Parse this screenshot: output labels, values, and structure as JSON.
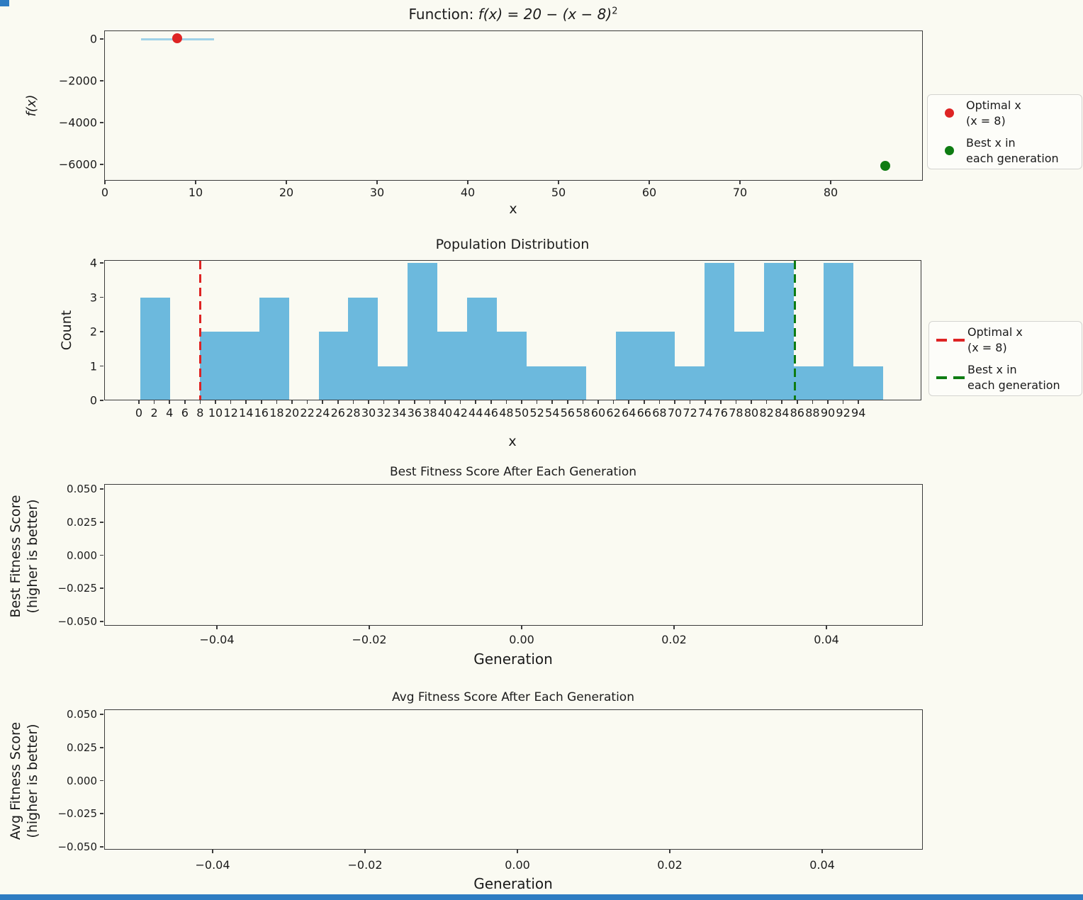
{
  "colors": {
    "red": "#de2424",
    "green": "#0e7c12",
    "hist_bar": "#6cb9dd",
    "function_line": "#9fd2e8",
    "axis": "#3b3b3b",
    "edge_artifact": "#2e7cc2"
  },
  "plot1": {
    "title_prefix": "Function: ",
    "title_math": "f(x) = 20 − (x − 8)",
    "title_sup": "2",
    "xlabel": "x",
    "ylabel": "f(x)"
  },
  "plot2": {
    "title": "Population Distribution",
    "xlabel": "x",
    "ylabel": "Count"
  },
  "plot3": {
    "title": "Best Fitness Score After Each Generation",
    "xlabel": "Generation",
    "ylabel_line1": "Best Fitness Score",
    "ylabel_line2": "(higher is better)"
  },
  "plot4": {
    "title": "Avg Fitness Score After Each Generation",
    "xlabel": "Generation",
    "ylabel_line1": "Avg Fitness Score",
    "ylabel_line2": "(higher is better)"
  },
  "legend1": {
    "item1_line1": "Optimal x",
    "item1_line2": "(x = 8)",
    "item2_line1": "Best x in",
    "item2_line2": "each generation"
  },
  "legend2": {
    "item1_line1": "Optimal x",
    "item1_line2": "(x = 8)",
    "item2_line1": "Best x in",
    "item2_line2": "each generation"
  },
  "chart_data": [
    {
      "type": "line",
      "title": "Function: f(x) = 20 − (x − 8)²",
      "xlabel": "x",
      "ylabel": "f(x)",
      "xlim": [
        -4.5,
        90
      ],
      "ylim": [
        -6740,
        400
      ],
      "grid": false,
      "legend_position": "outside-right",
      "xticks": {
        "values": [
          0,
          10,
          20,
          30,
          40,
          50,
          60,
          70,
          80
        ],
        "labels": [
          "0",
          "10",
          "20",
          "30",
          "40",
          "50",
          "60",
          "70",
          "80"
        ]
      },
      "yticks": {
        "values": [
          0,
          -2000,
          -4000,
          -6000
        ],
        "labels": [
          "0",
          "−2000",
          "−4000",
          "−6000"
        ]
      },
      "series": [
        {
          "name": "function curve over population range",
          "type": "line",
          "color": "#9fd2e8",
          "x": [
            4,
            8,
            12
          ],
          "y": [
            4,
            20,
            4
          ]
        },
        {
          "name": "Optimal x (x = 8)",
          "type": "scatter",
          "color": "#de2424",
          "points": [
            [
              8,
              20
            ]
          ]
        },
        {
          "name": "Best x in each generation",
          "type": "scatter",
          "color": "#0e7c12",
          "points": [
            [
              86,
              -6064
            ]
          ]
        }
      ]
    },
    {
      "type": "bar",
      "subtype": "histogram",
      "title": "Population Distribution",
      "xlabel": "x",
      "ylabel": "Count",
      "ylim": [
        0,
        4.2
      ],
      "grid": false,
      "legend_position": "outside-right",
      "bar_color": "#6cb9dd",
      "bin_edges": [
        0.2,
        4.08,
        7.96,
        11.84,
        15.72,
        19.6,
        23.48,
        27.36,
        31.24,
        35.12,
        39.0,
        42.88,
        46.76,
        50.64,
        54.52,
        58.4,
        62.28,
        66.16,
        70.04,
        73.92,
        77.8,
        81.68,
        85.56,
        89.44,
        93.32,
        97.2
      ],
      "counts": [
        3,
        0,
        2,
        2,
        3,
        0,
        2,
        3,
        1,
        4,
        2,
        3,
        2,
        1,
        1,
        0,
        2,
        2,
        1,
        4,
        2,
        4,
        1,
        4,
        1
      ],
      "vlines": [
        {
          "x": 8,
          "color": "#de2424",
          "style": "dashed",
          "label": "Optimal x (x = 8)"
        },
        {
          "x": 85.7,
          "color": "#0e7c12",
          "style": "dashed",
          "label": "Best x in each generation"
        }
      ],
      "xticks": {
        "values": [
          0,
          2,
          4,
          6,
          8,
          10,
          12,
          14,
          16,
          18,
          20,
          22,
          24,
          26,
          28,
          30,
          32,
          34,
          36,
          38,
          40,
          42,
          44,
          46,
          48,
          50,
          52,
          54,
          56,
          58,
          60,
          62,
          64,
          66,
          68,
          70,
          72,
          74,
          76,
          78,
          80,
          82,
          84,
          86,
          88,
          90,
          92,
          94
        ],
        "labels": [
          "0",
          "2",
          "4",
          "6",
          "8",
          "10",
          "12",
          "14",
          "16",
          "18",
          "20",
          "22",
          "24",
          "26",
          "28",
          "30",
          "32",
          "34",
          "36",
          "38",
          "40",
          "42",
          "44",
          "46",
          "48",
          "50",
          "52",
          "54",
          "56",
          "58",
          "60",
          "62",
          "64",
          "66",
          "68",
          "70",
          "72",
          "74",
          "76",
          "78",
          "80",
          "82",
          "84",
          "86",
          "88",
          "90",
          "92",
          "94"
        ]
      },
      "yticks": {
        "values": [
          0,
          1,
          2,
          3,
          4
        ],
        "labels": [
          "0",
          "1",
          "2",
          "3",
          "4"
        ]
      }
    },
    {
      "type": "line",
      "title": "Best Fitness Score After Each Generation",
      "xlabel": "Generation",
      "ylabel": "Best Fitness Score (higher is better)",
      "xlim": [
        -0.055,
        0.0527
      ],
      "ylim": [
        -0.0554,
        0.0536
      ],
      "grid": false,
      "series": [],
      "xticks": {
        "values": [
          -0.04,
          -0.02,
          0,
          0.02,
          0.04
        ],
        "labels": [
          "−0.04",
          "−0.02",
          "0.00",
          "0.02",
          "0.04"
        ]
      },
      "yticks": {
        "values": [
          0.05,
          0.025,
          0,
          -0.025,
          -0.05
        ],
        "labels": [
          "0.050",
          "0.025",
          "0.000",
          "−0.025",
          "−0.050"
        ]
      }
    },
    {
      "type": "line",
      "title": "Avg Fitness Score After Each Generation",
      "xlabel": "Generation",
      "ylabel": "Avg Fitness Score (higher is better)",
      "xlim": [
        -0.0542,
        0.0532
      ],
      "ylim": [
        -0.0552,
        0.0538
      ],
      "grid": false,
      "series": [],
      "xticks": {
        "values": [
          -0.04,
          -0.02,
          0,
          0.02,
          0.04
        ],
        "labels": [
          "−0.04",
          "−0.02",
          "0.00",
          "0.02",
          "0.04"
        ]
      },
      "yticks": {
        "values": [
          0.05,
          0.025,
          0,
          -0.025,
          -0.05
        ],
        "labels": [
          "0.050",
          "0.025",
          "0.000",
          "−0.025",
          "−0.050"
        ]
      }
    }
  ]
}
